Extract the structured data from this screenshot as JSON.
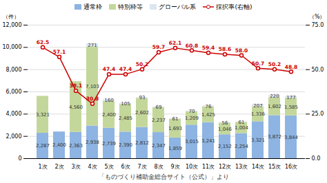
{
  "chart_data": {
    "type": "bar",
    "stacked": true,
    "categories": [
      "1次",
      "2次",
      "3次",
      "4次",
      "5次",
      "6次",
      "7次",
      "8次",
      "9次",
      "10次",
      "11次",
      "12次",
      "13次",
      "14次",
      "15次",
      "16次"
    ],
    "series": [
      {
        "name": "通常枠",
        "type": "bar",
        "color": "#8db4e2",
        "values": [
          2287,
          2400,
          2363,
          2938,
          2739,
          2390,
          2812,
          2347,
          1859,
          3015,
          3241,
          2152,
          2254,
          3321,
          3872,
          3844
        ],
        "value_labels": [
          "2,287",
          "2,400",
          "2,363",
          "2,938",
          "2,739",
          "2,390",
          "2,812",
          "2,347",
          "1,859",
          "3,015",
          "3,241",
          "2,152",
          "2,254",
          "3,321",
          "3,872",
          "3,844"
        ]
      },
      {
        "name": "特別枠等",
        "type": "bar",
        "color": "#c4d79b",
        "values": [
          3321,
          0,
          4560,
          7103,
          2400,
          2485,
          2602,
          2237,
          1693,
          1209,
          1425,
          1046,
          1004,
          1336,
          1602,
          1585
        ],
        "value_labels": [
          "3,321",
          null,
          "4,560",
          "7,103",
          "2,400",
          "2,485",
          "2,602",
          "2,237",
          "1,693",
          "1,209",
          "1,425",
          "1,046",
          "1,004",
          "1,336",
          "1,602",
          "1,585"
        ]
      },
      {
        "name": "グローバル系",
        "type": "bar",
        "color": "#dce6f1",
        "values": [
          0,
          0,
          0,
          271,
          160,
          105,
          93,
          69,
          61,
          70,
          76,
          56,
          61,
          207,
          220,
          177
        ],
        "value_labels": [
          null,
          null,
          null,
          "271",
          "160",
          "105",
          "93",
          "69",
          "61",
          "70",
          "76",
          "56",
          "61",
          "207",
          "220",
          "177"
        ]
      },
      {
        "name": "採択率(右軸)",
        "type": "line",
        "axis": "y2",
        "color": "#cc0000",
        "marker": "circle",
        "values": [
          62.5,
          57.1,
          38.1,
          30.8,
          47.4,
          47.4,
          50.2,
          59.7,
          62.1,
          60.8,
          59.4,
          58.6,
          58.0,
          50.7,
          50.2,
          48.8
        ],
        "value_labels": [
          "62.5",
          "57.1",
          "38.1",
          "30.8",
          "47.4",
          "47.4",
          "50.2",
          "59.7",
          "62.1",
          "60.8",
          "59.4",
          "58.6",
          "58.0",
          "50.7",
          "50.2",
          "48.8"
        ]
      }
    ],
    "xlabel": "「ものづくり補助金総合サイト（公式）」より",
    "ylabel": "（件）",
    "y2label": "（%）",
    "ylim": [
      0,
      12000
    ],
    "yticks": [
      0,
      {
        "value": 2000,
        "label": "2,000"
      },
      {
        "value": 4000,
        "label": "4,000"
      },
      {
        "value": 6000,
        "label": "6,000"
      },
      {
        "value": 8000,
        "label": "8,000"
      },
      {
        "value": 10000,
        "label": "10,000"
      },
      {
        "value": 12000,
        "label": "12,000"
      }
    ],
    "y2lim": [
      0,
      75
    ],
    "y2ticks": [
      {
        "value": 0,
        "label": "0.0"
      },
      {
        "value": 25,
        "label": "25.0"
      },
      {
        "value": 50,
        "label": "50.0"
      },
      {
        "value": 75,
        "label": "75.0"
      }
    ],
    "grid": true,
    "legend": "top",
    "data_labels": true
  }
}
